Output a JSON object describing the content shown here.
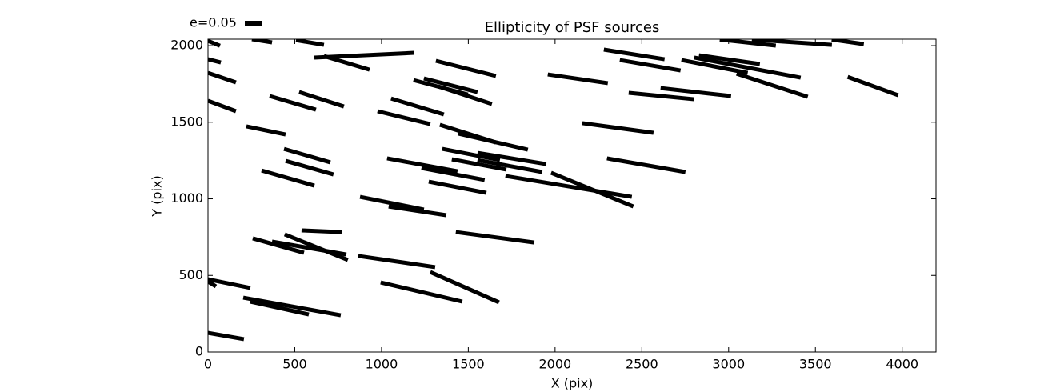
{
  "chart_data": {
    "type": "whisker",
    "title": "Ellipticity of PSF sources",
    "xlabel": "X (pix)",
    "ylabel": "Y (pix)",
    "legend_label": "e=0.05",
    "color": "#000000",
    "xlim": [
      0,
      4195
    ],
    "ylim": [
      0,
      2042
    ],
    "xticks": [
      0,
      500,
      1000,
      1500,
      2000,
      2500,
      3000,
      3500,
      4000
    ],
    "yticks": [
      0,
      500,
      1000,
      1500,
      2000
    ],
    "x_start": [
      0,
      253,
      507,
      613,
      668,
      0,
      0,
      0,
      355,
      525,
      221,
      438,
      447,
      309,
      1313,
      1184,
      1244,
      1327,
      1055,
      977,
      1336,
      1442,
      1350,
      1553,
      1553,
      1405,
      1032,
      1230,
      1272,
      1714,
      1977,
      876,
      1041,
      539,
      258,
      369,
      442,
      866,
      1428,
      0,
      0,
      995,
      1281,
      203,
      244,
      0,
      1958,
      2281,
      2373,
      2424,
      2608,
      2728,
      2802,
      2829,
      3046,
      3686,
      2157,
      2299,
      2949,
      3134,
      3594
    ],
    "y_start": [
      2031,
      2042,
      2036,
      1922,
      1932,
      1911,
      1822,
      1640,
      1671,
      1697,
      1473,
      1326,
      1248,
      1185,
      1901,
      1775,
      1786,
      1734,
      1655,
      1572,
      1483,
      1426,
      1326,
      1300,
      1253,
      1258,
      1264,
      1201,
      1112,
      1149,
      1170,
      1013,
      950,
      794,
      742,
      721,
      768,
      627,
      783,
      475,
      460,
      454,
      522,
      355,
      329,
      125,
      1812,
      1974,
      1906,
      1692,
      1723,
      1906,
      1922,
      1937,
      1817,
      1796,
      1494,
      1264,
      2040,
      2040,
      2040
    ],
    "x_end": [
      69,
      369,
      668,
      1189,
      931,
      74,
      161,
      161,
      622,
      783,
      447,
      705,
      723,
      613,
      1659,
      1498,
      1553,
      1636,
      1359,
      1281,
      1659,
      1843,
      1682,
      1949,
      1926,
      1719,
      1438,
      1594,
      1604,
      2442,
      2451,
      1244,
      1373,
      770,
      553,
      797,
      806,
      1309,
      1880,
      244,
      46,
      1465,
      1677,
      765,
      581,
      207,
      2304,
      2631,
      2723,
      2802,
      3014,
      3110,
      3415,
      3180,
      3456,
      3977,
      2567,
      2751,
      3272,
      3595,
      3779
    ],
    "y_end": [
      1999,
      2021,
      2005,
      1953,
      1843,
      1890,
      1760,
      1572,
      1582,
      1603,
      1420,
      1238,
      1159,
      1086,
      1802,
      1681,
      1697,
      1619,
      1551,
      1488,
      1368,
      1321,
      1253,
      1227,
      1175,
      1191,
      1180,
      1123,
      1039,
      1013,
      950,
      930,
      893,
      783,
      648,
      637,
      601,
      554,
      715,
      418,
      428,
      329,
      324,
      240,
      245,
      84,
      1755,
      1911,
      1838,
      1650,
      1671,
      1822,
      1791,
      1880,
      1666,
      1676,
      1431,
      1175,
      2000,
      2005,
      2010
    ]
  }
}
